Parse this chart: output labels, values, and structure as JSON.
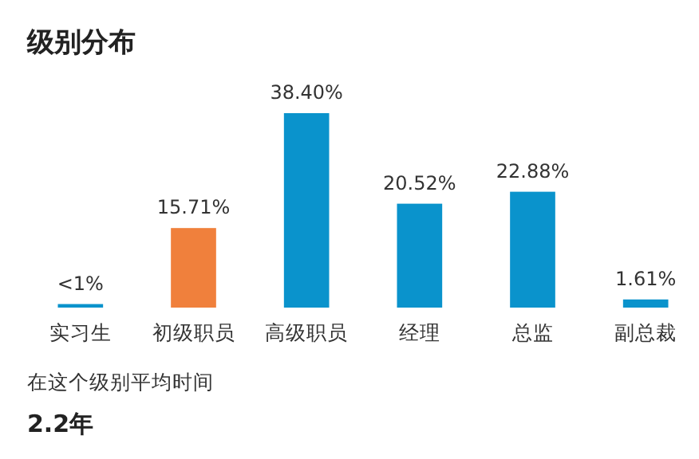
{
  "chart_data": {
    "type": "bar",
    "title": "级别分布",
    "categories": [
      "实习生",
      "初级职员",
      "高级职员",
      "经理",
      "总监",
      "副总裁"
    ],
    "values": [
      0.7,
      15.71,
      38.4,
      20.52,
      22.88,
      1.61
    ],
    "value_labels": [
      "<1%",
      "15.71%",
      "38.40%",
      "20.52%",
      "22.88%",
      "1.61%"
    ],
    "colors": [
      "#0a93cc",
      "#f0803c",
      "#0a93cc",
      "#0a93cc",
      "#0a93cc",
      "#0a93cc"
    ],
    "annotations": [
      "在这个级别平均时间",
      "2.2年"
    ]
  }
}
